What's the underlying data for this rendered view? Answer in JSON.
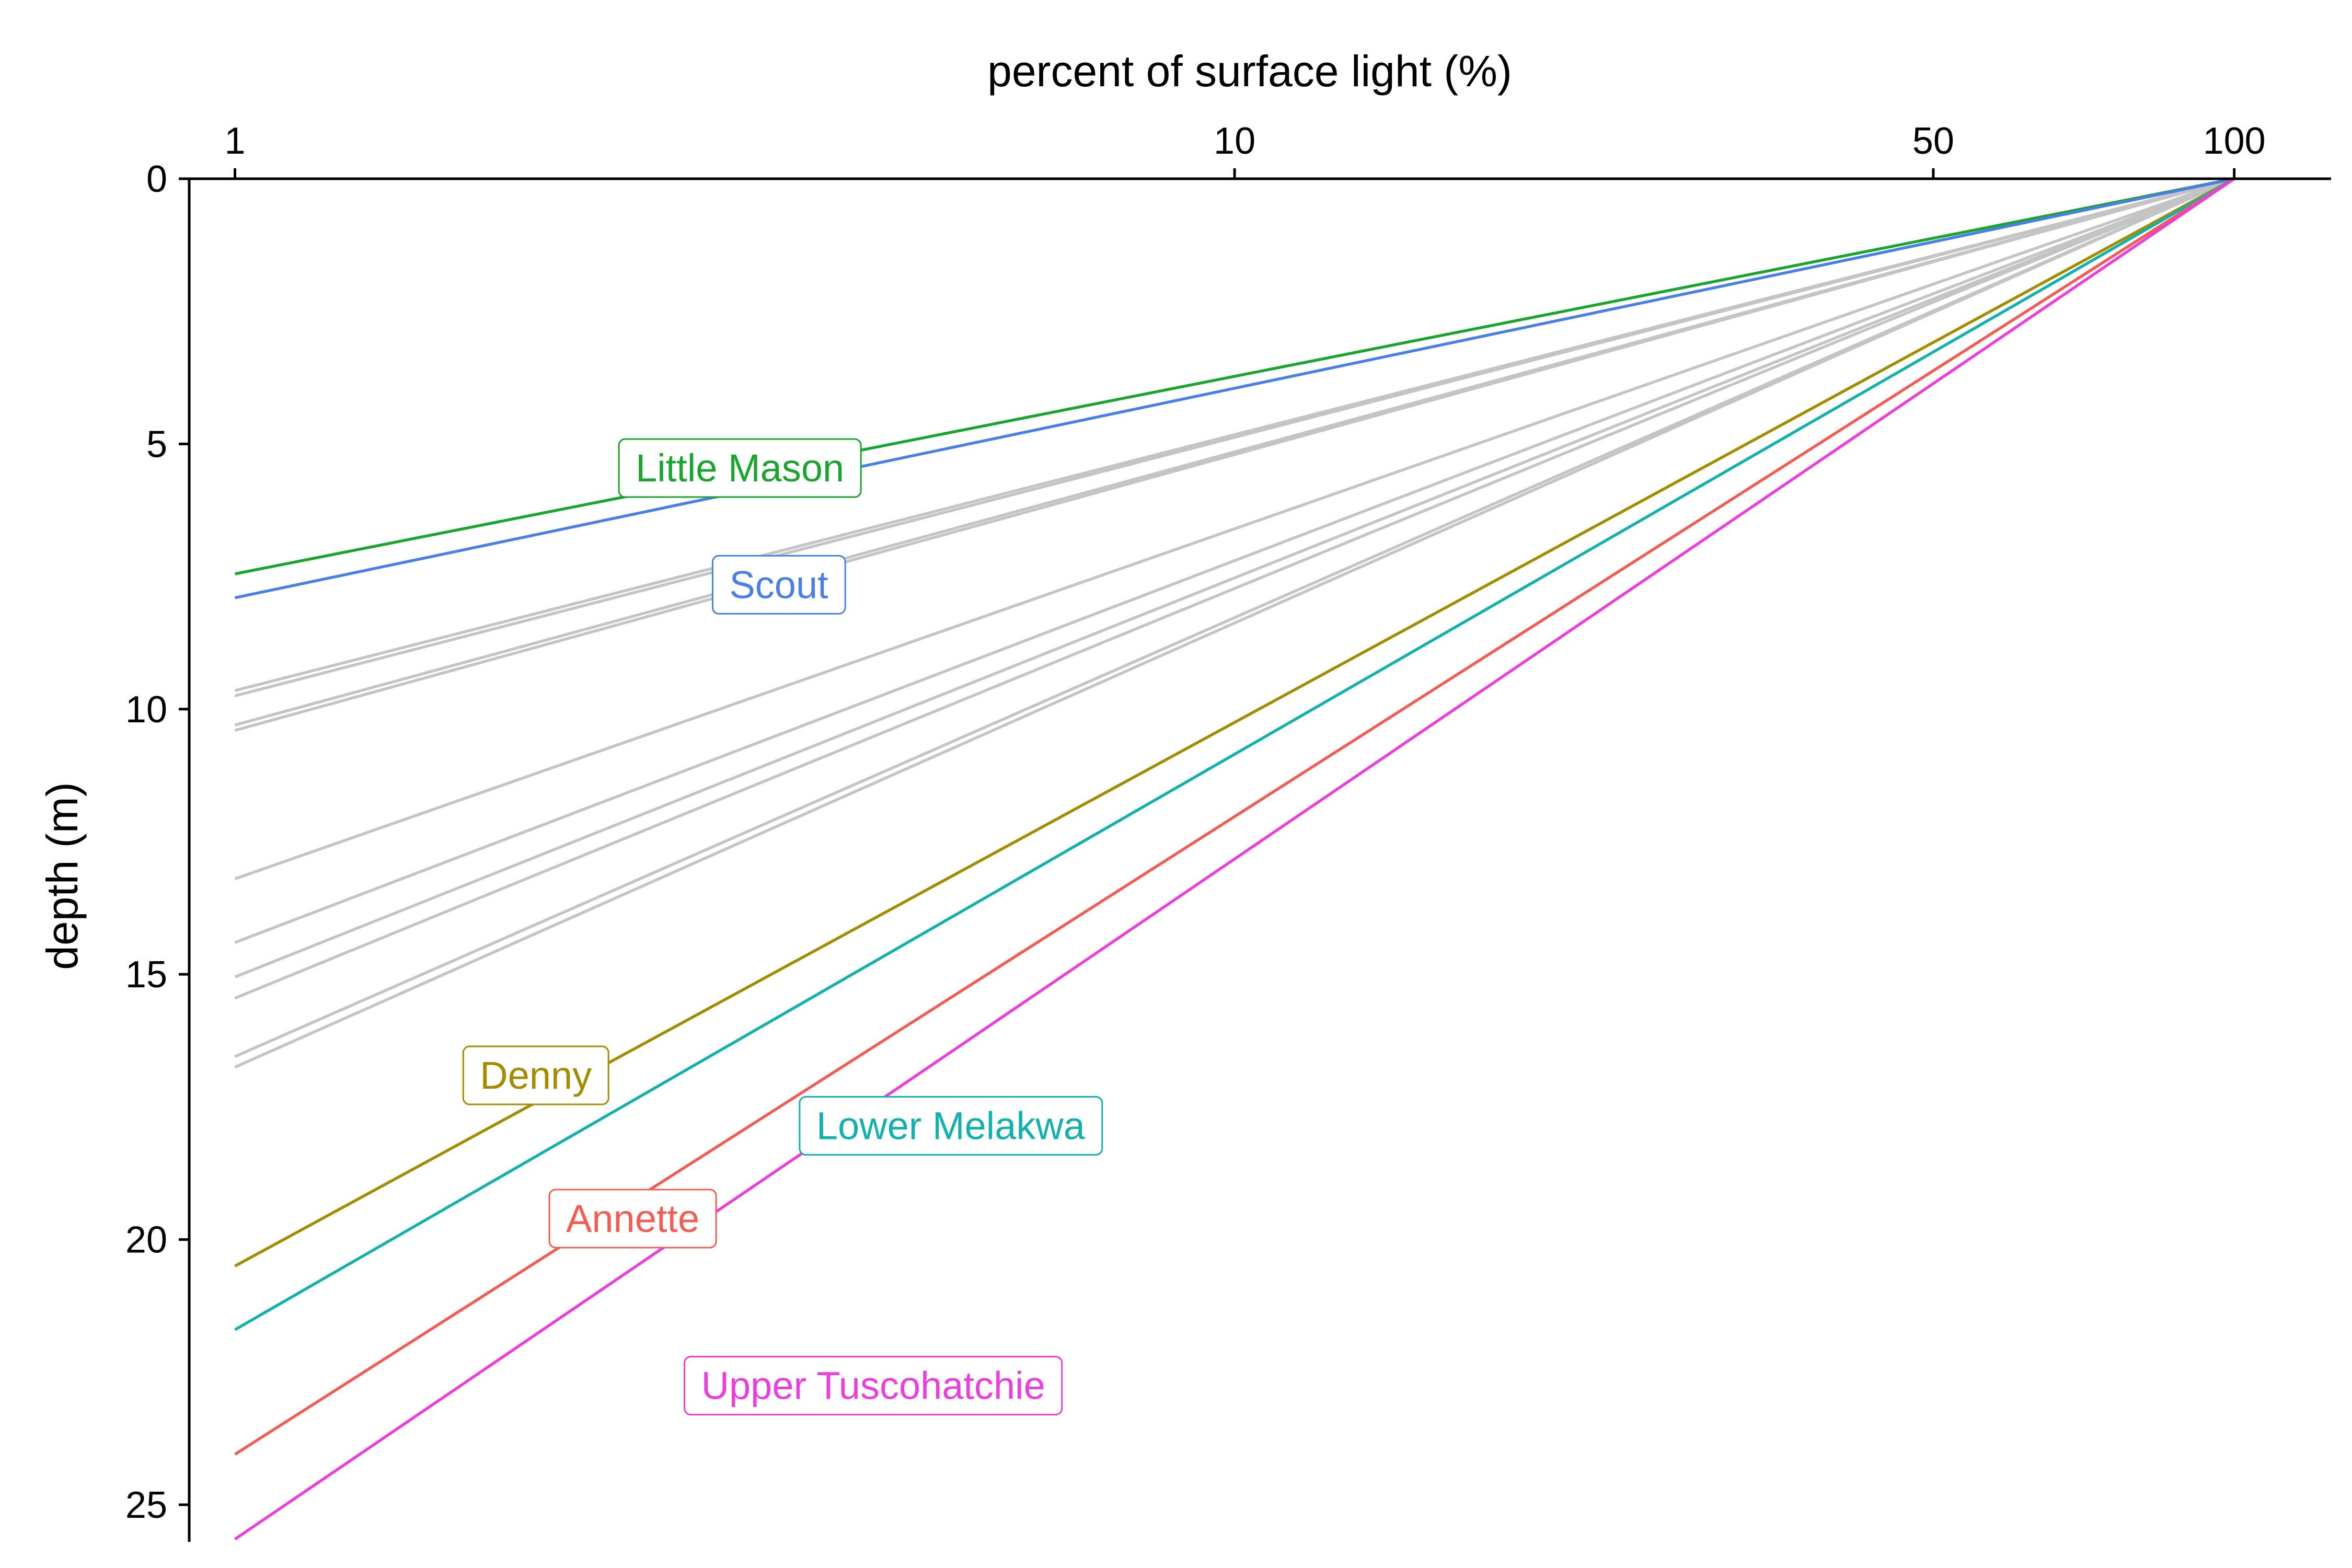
{
  "chart_data": {
    "type": "line",
    "xlabel": "percent of surface light (%)",
    "ylabel": "depth (m)",
    "x_scale": "log",
    "x_axis_position": "top",
    "y_inverted": true,
    "xlim": [
      0.9,
      125
    ],
    "ylim": [
      0,
      25.7
    ],
    "x_ticks": [
      1,
      10,
      50,
      100
    ],
    "y_ticks": [
      0,
      5,
      10,
      15,
      20,
      25
    ],
    "grid": false,
    "legend": "none",
    "series": [
      {
        "name": "Little Mason",
        "color": "#1aa52f",
        "highlight": true,
        "x": [
          100,
          1
        ],
        "y": [
          0,
          7.45
        ],
        "label_pos": [
          3.2,
          5.45
        ]
      },
      {
        "name": "Scout",
        "color": "#4a7fe8",
        "highlight": true,
        "x": [
          100,
          1
        ],
        "y": [
          0,
          7.9
        ],
        "label_pos": [
          3.5,
          7.65
        ]
      },
      {
        "x": [
          100,
          1
        ],
        "y": [
          0,
          9.65
        ],
        "color": "#c4c4c4",
        "highlight": false
      },
      {
        "x": [
          100,
          1
        ],
        "y": [
          0,
          9.75
        ],
        "color": "#c4c4c4",
        "highlight": false
      },
      {
        "x": [
          100,
          1
        ],
        "y": [
          0,
          10.3
        ],
        "color": "#c4c4c4",
        "highlight": false
      },
      {
        "x": [
          100,
          1
        ],
        "y": [
          0,
          10.4
        ],
        "color": "#c4c4c4",
        "highlight": false
      },
      {
        "x": [
          100,
          1
        ],
        "y": [
          0,
          13.2
        ],
        "color": "#c4c4c4",
        "highlight": false
      },
      {
        "x": [
          100,
          1
        ],
        "y": [
          0,
          14.4
        ],
        "color": "#c4c4c4",
        "highlight": false
      },
      {
        "x": [
          100,
          1
        ],
        "y": [
          0,
          15.05
        ],
        "color": "#c4c4c4",
        "highlight": false
      },
      {
        "x": [
          100,
          1
        ],
        "y": [
          0,
          15.45
        ],
        "color": "#c4c4c4",
        "highlight": false
      },
      {
        "x": [
          100,
          1
        ],
        "y": [
          0,
          16.55
        ],
        "color": "#c4c4c4",
        "highlight": false
      },
      {
        "x": [
          100,
          1
        ],
        "y": [
          0,
          16.75
        ],
        "color": "#c4c4c4",
        "highlight": false
      },
      {
        "name": "Denny",
        "color": "#a38c00",
        "highlight": true,
        "x": [
          100,
          1
        ],
        "y": [
          0,
          20.5
        ],
        "label_pos": [
          2.0,
          16.9
        ]
      },
      {
        "name": "Lower Melakwa",
        "color": "#13b1ad",
        "highlight": true,
        "x": [
          100,
          1
        ],
        "y": [
          0,
          21.7
        ],
        "label_pos": [
          5.2,
          17.85
        ]
      },
      {
        "name": "Annette",
        "color": "#f35c53",
        "highlight": true,
        "x": [
          100,
          1
        ],
        "y": [
          0,
          24.05
        ],
        "label_pos": [
          2.5,
          19.6
        ]
      },
      {
        "name": "Upper Tuscohatchie",
        "color": "#ec3ddd",
        "highlight": true,
        "x": [
          100,
          1
        ],
        "y": [
          0,
          25.65
        ],
        "label_pos": [
          4.35,
          22.75
        ]
      }
    ]
  }
}
